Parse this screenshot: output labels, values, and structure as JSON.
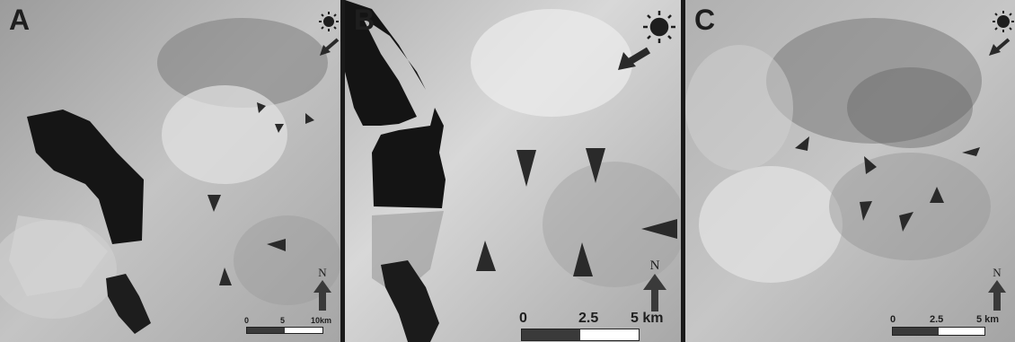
{
  "panels": [
    {
      "label": "A",
      "scale": {
        "ticks": [
          "0",
          "5",
          "10km"
        ],
        "max_km": 10
      },
      "north_label": "N",
      "icons": {
        "sun": "sun-icon",
        "illumination": "illumination-arrow-icon",
        "north": "north-arrow-icon",
        "feature": "feature-arrowhead-icon"
      }
    },
    {
      "label": "B",
      "scale": {
        "ticks": [
          "0",
          "2.5",
          "5 km"
        ],
        "max_km": 5
      },
      "north_label": "N",
      "icons": {
        "sun": "sun-icon",
        "illumination": "illumination-arrow-icon",
        "north": "north-arrow-icon",
        "feature": "feature-arrowhead-icon"
      }
    },
    {
      "label": "C",
      "scale": {
        "ticks": [
          "0",
          "2.5",
          "5 km"
        ],
        "max_km": 5
      },
      "north_label": "N",
      "icons": {
        "sun": "sun-icon",
        "illumination": "illumination-arrow-icon",
        "north": "north-arrow-icon",
        "feature": "feature-arrowhead-icon"
      }
    }
  ],
  "colors": {
    "surface": "#b8b8b8",
    "shadow": "#151515",
    "marker": "#2a2a2a",
    "border": "#1a1a1a"
  }
}
